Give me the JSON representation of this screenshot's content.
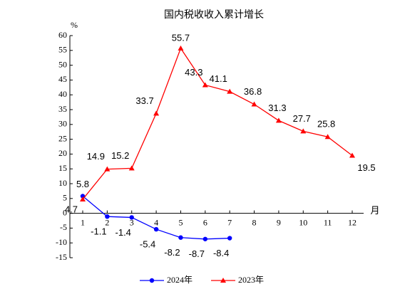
{
  "chart_data": {
    "type": "line",
    "title": "国内税收收入累计增长",
    "y_label": "%",
    "x_label": "月",
    "categories": [
      "1",
      "2",
      "3",
      "4",
      "5",
      "6",
      "7",
      "8",
      "9",
      "10",
      "11",
      "12"
    ],
    "series": [
      {
        "name": "2024年",
        "color": "#0000ff",
        "values": [
          5.8,
          -1.1,
          -1.4,
          -5.4,
          -8.2,
          -8.7,
          -8.4,
          null,
          null,
          null,
          null,
          null
        ]
      },
      {
        "name": "2023年",
        "color": "#ff0000",
        "values": [
          4.7,
          14.9,
          15.2,
          33.7,
          55.7,
          43.3,
          41.1,
          36.8,
          31.3,
          27.7,
          25.8,
          19.5
        ]
      }
    ],
    "ylim": [
      -15,
      60
    ],
    "yticks": [
      -15,
      -10,
      -5,
      0,
      5,
      10,
      15,
      20,
      25,
      30,
      35,
      40,
      45,
      50,
      55,
      60
    ]
  }
}
